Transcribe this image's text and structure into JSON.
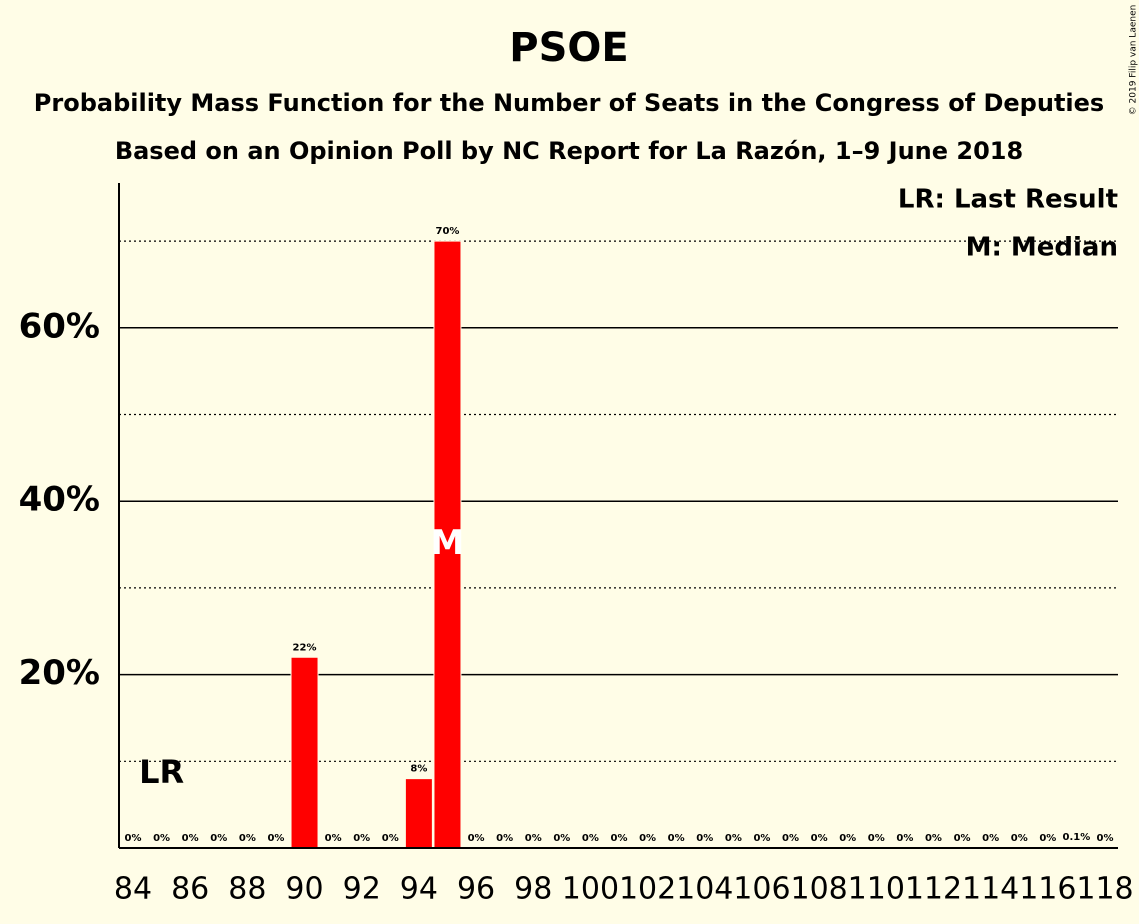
{
  "chart_data": {
    "type": "bar",
    "title": "PSOE",
    "subtitles": [
      "Probability Mass Function for the Number of Seats in the Congress of Deputies",
      "Based on an Opinion Poll by NC Report for La Razón, 1–9 June 2018"
    ],
    "credit": "© 2019 Filip van Laenen",
    "categories": [
      84,
      null,
      86,
      null,
      88,
      null,
      90,
      null,
      92,
      null,
      94,
      null,
      96,
      null,
      98,
      null,
      100,
      null,
      102,
      null,
      104,
      null,
      106,
      null,
      108,
      null,
      110,
      null,
      112,
      null,
      114,
      null,
      116,
      null,
      118
    ],
    "values": [
      0,
      0,
      0,
      0,
      0,
      0,
      22,
      0,
      0,
      0,
      8,
      70,
      0,
      0,
      0,
      0,
      0,
      0,
      0,
      0,
      0,
      0,
      0,
      0,
      0,
      0,
      0,
      0,
      0,
      0,
      0,
      0,
      0,
      0.1,
      0
    ],
    "value_labels": [
      "0%",
      "0%",
      "0%",
      "0%",
      "0%",
      "0%",
      "22%",
      "0%",
      "0%",
      "0%",
      "8%",
      "70%",
      "0%",
      "0%",
      "0%",
      "0%",
      "0%",
      "0%",
      "0%",
      "0%",
      "0%",
      "0%",
      "0%",
      "0%",
      "0%",
      "0%",
      "0%",
      "0%",
      "0%",
      "0%",
      "0%",
      "0%",
      "0%",
      "0.1%",
      "0%"
    ],
    "color": "#ff0000",
    "ylim": [
      0,
      76.7
    ],
    "yticks": [
      {
        "value": 20,
        "label": "20%"
      },
      {
        "value": 40,
        "label": "40%"
      },
      {
        "value": 60,
        "label": "60%"
      }
    ],
    "minor_yticks": [
      10,
      30,
      50,
      70
    ],
    "last_result": {
      "label": "LR",
      "seats": 85
    },
    "median": {
      "label": "M",
      "seats": 95
    },
    "legend": [
      "LR: Last Result",
      "M: Median"
    ]
  }
}
